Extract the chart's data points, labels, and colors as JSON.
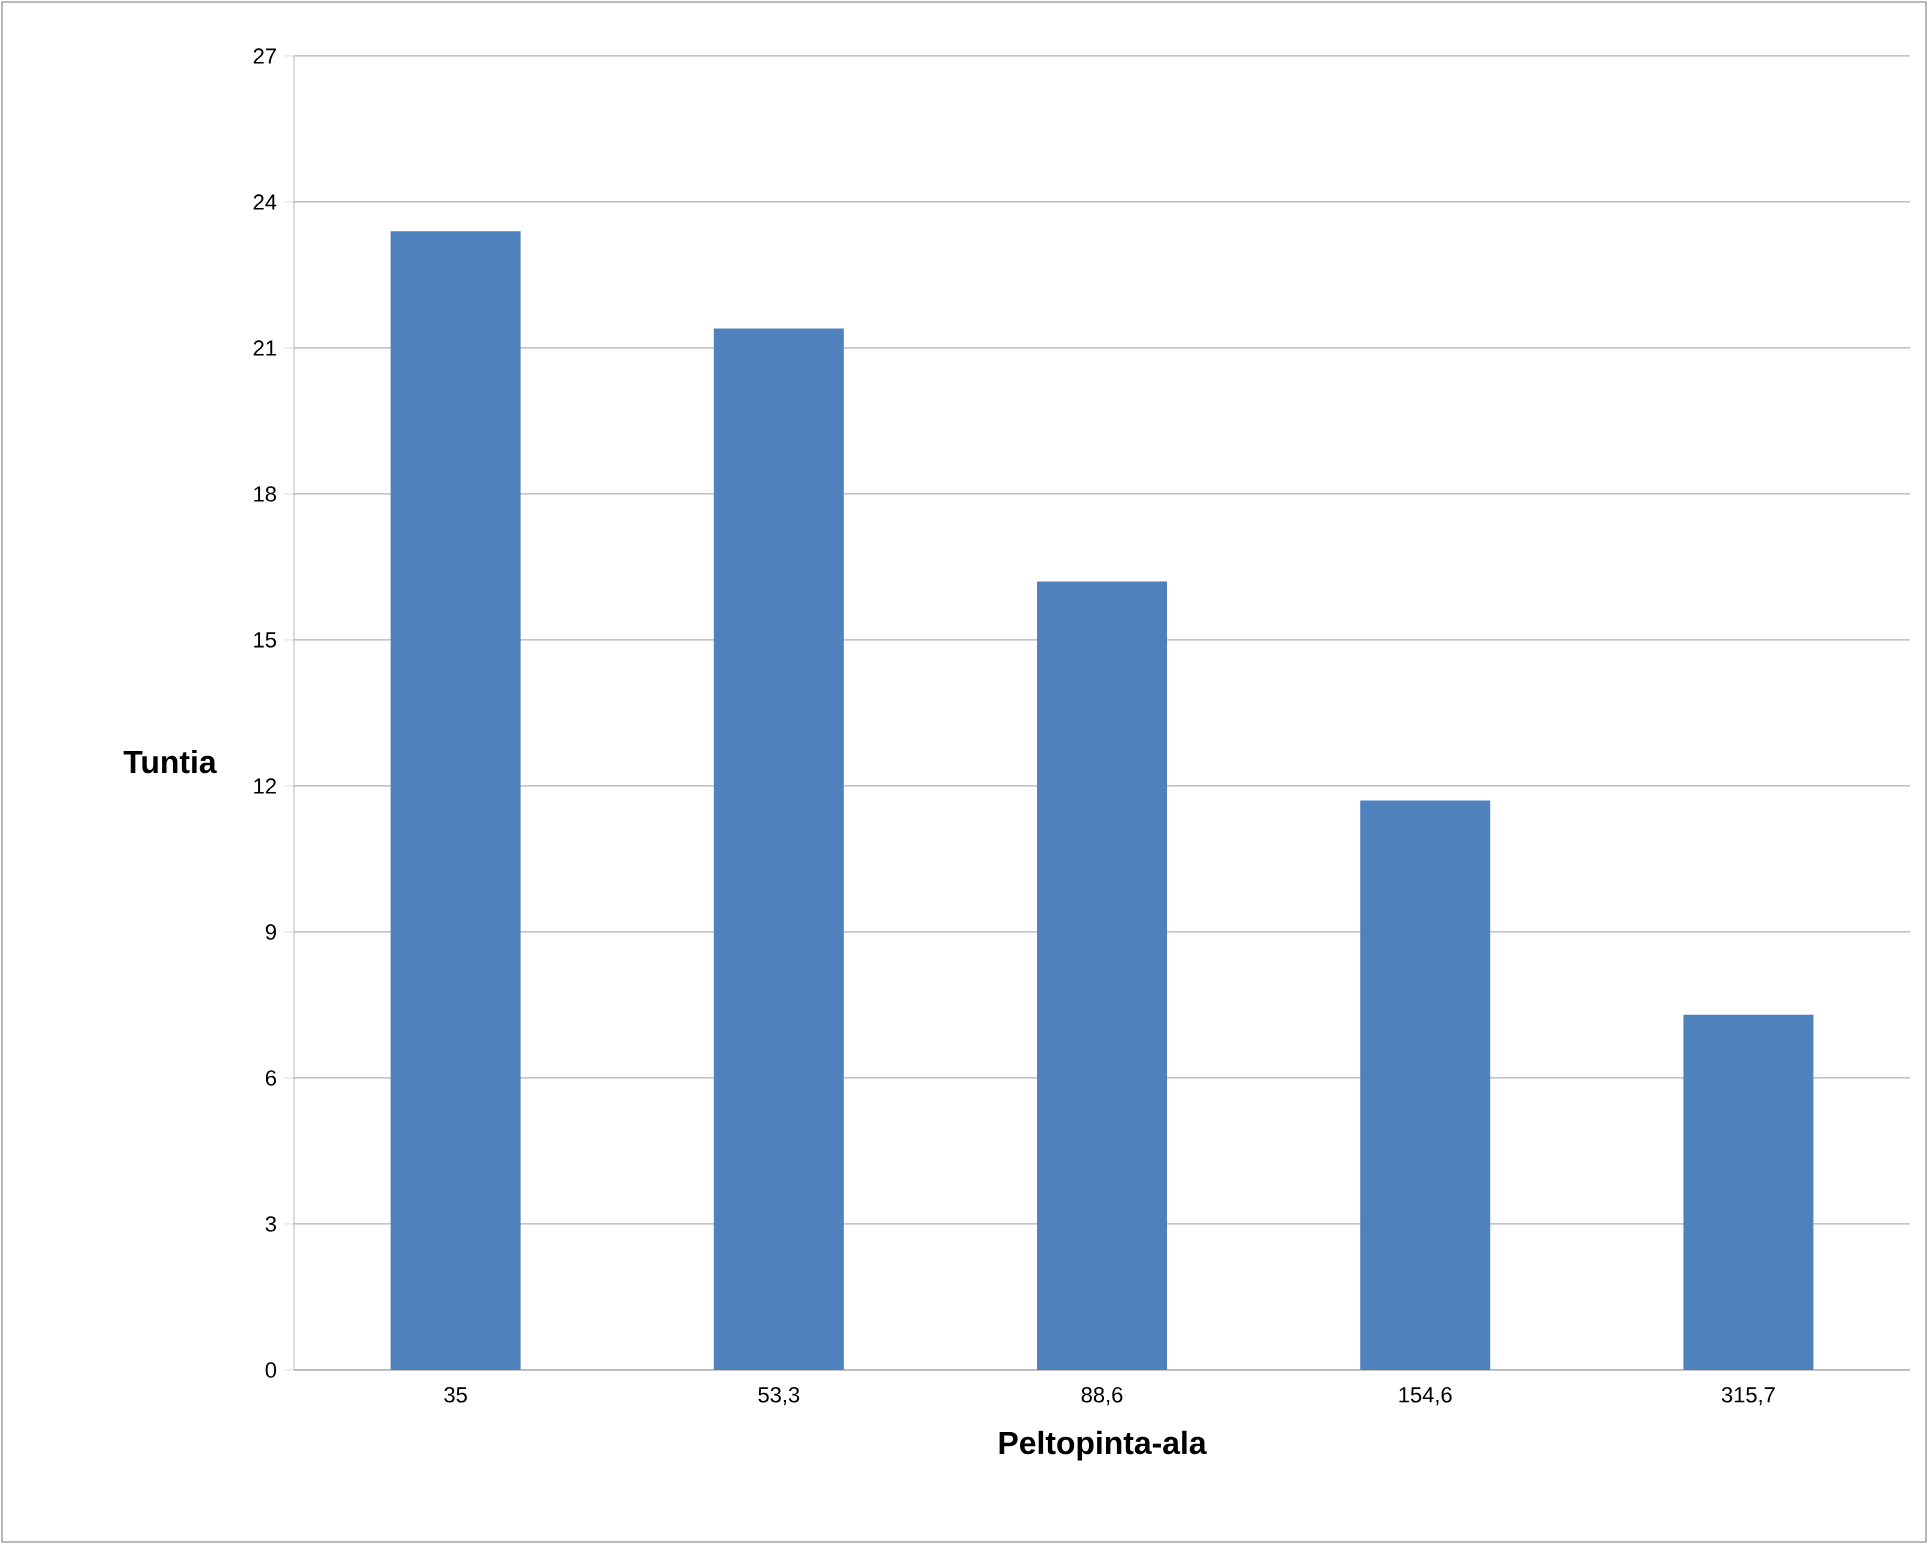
{
  "chart_data": {
    "type": "bar",
    "xlabel": "Peltopinta-ala",
    "ylabel": "Tuntia",
    "categories": [
      "35",
      "53,3",
      "88,6",
      "154,6",
      "315,7"
    ],
    "values": [
      23.4,
      21.4,
      16.2,
      11.7,
      7.3
    ],
    "color": "#4f81bd",
    "ylim": [
      0,
      27
    ],
    "yticks": [
      0,
      3,
      6,
      9,
      12,
      15,
      18,
      21,
      24,
      27
    ],
    "grid": "y"
  }
}
